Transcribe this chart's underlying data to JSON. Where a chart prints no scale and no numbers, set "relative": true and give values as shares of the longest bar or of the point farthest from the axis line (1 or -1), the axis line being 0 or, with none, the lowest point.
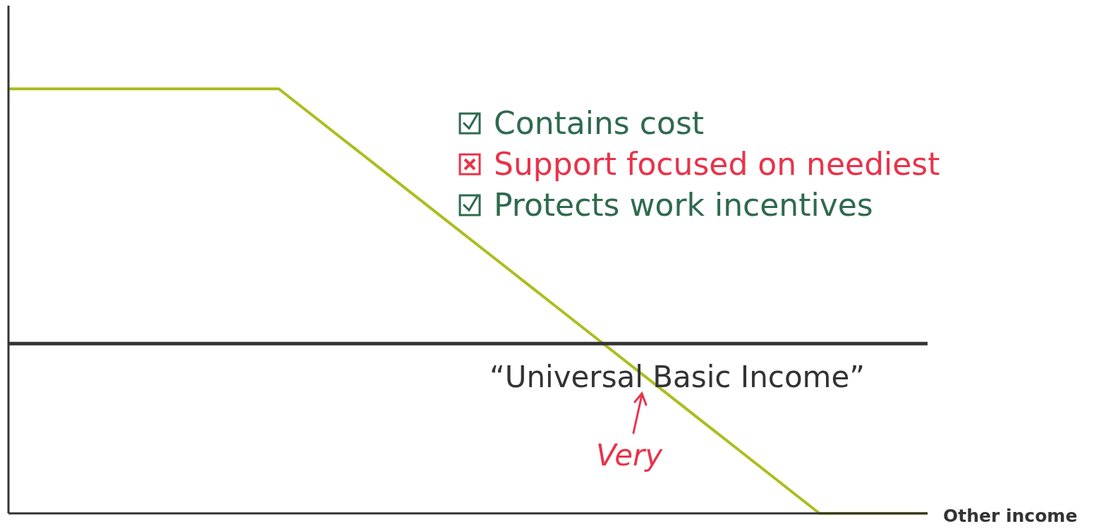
{
  "chart_data": {
    "type": "line",
    "relative": true,
    "xlabel": "Other income",
    "categories": [
      null,
      null,
      null,
      null,
      null,
      null,
      null,
      null,
      null,
      null,
      null,
      null,
      null,
      null,
      null,
      null,
      null,
      null
    ],
    "series": [
      {
        "color": "#acbd1e",
        "values": [
          1,
          1,
          1,
          1,
          1,
          1,
          0.9,
          0.8,
          0.7,
          0.6,
          0.5,
          0.4,
          0.3,
          0.2,
          0.1,
          0,
          0,
          0
        ]
      }
    ],
    "ref_lines": [
      {
        "axis": "y",
        "value": 0.4,
        "label": "“Universal Basic Income”",
        "color": "#333333"
      }
    ],
    "annotations": [
      "Contains cost",
      "Support focused on neediest",
      "Protects work incentives",
      "Very"
    ],
    "marker": "none",
    "line_style": "solid"
  }
}
